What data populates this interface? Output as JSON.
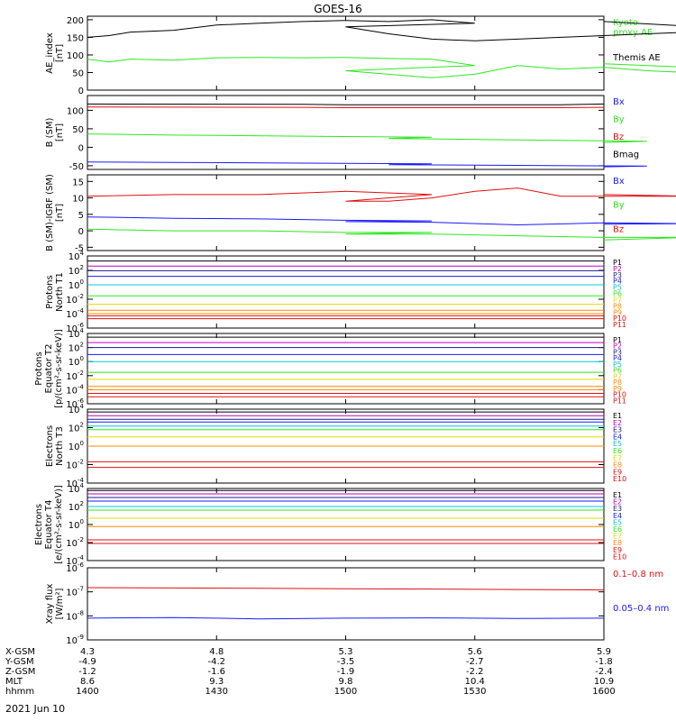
{
  "figure": {
    "title": "GOES-16",
    "date": "2021 Jun 10"
  },
  "colors": {
    "axis": "#000000",
    "black": "#000000",
    "green": "#2fe81f",
    "blue": "#1a1aff",
    "red": "#e01010",
    "orange": "#ff8c00",
    "yellow": "#e6d800",
    "cyan": "#00c8dc",
    "navy": "#1c1c8c",
    "magenta": "#c000c0"
  },
  "ephemeris": {
    "labels": [
      "X-GSM",
      "Y-GSM",
      "Z-GSM",
      "MLT",
      "hhmm"
    ],
    "columns": [
      {
        "x": "4.3",
        "y": "-4.9",
        "z": "-1.2",
        "mlt": "8.6",
        "hhmm": "1400"
      },
      {
        "x": "4.8",
        "y": "-4.2",
        "z": "-1.6",
        "mlt": "9.3",
        "hhmm": "1430"
      },
      {
        "x": "5.3",
        "y": "-3.5",
        "z": "-1.9",
        "mlt": "9.8",
        "hhmm": "1500"
      },
      {
        "x": "5.6",
        "y": "-2.7",
        "z": "-2.2",
        "mlt": "10.4",
        "hhmm": "1530"
      },
      {
        "x": "5.9",
        "y": "-1.8",
        "z": "-2.4",
        "mlt": "10.9",
        "hhmm": "1600"
      }
    ]
  },
  "chart_data": [
    {
      "type": "line",
      "ylabel": "AE_index\n[nT]",
      "xlim": [
        1400,
        1600
      ],
      "ylim": [
        0,
        210
      ],
      "yticks": [
        0,
        50,
        100,
        150,
        200
      ],
      "series": [
        {
          "name": "Kyoto\nproxy AE",
          "color": "green",
          "x": [
            1400,
            1405,
            1410,
            1420,
            1430,
            1440,
            1450,
            1460,
            1470,
            1480,
            1490,
            1500,
            1510,
            1520,
            1530,
            1540,
            1550,
            1560,
            1570,
            1580,
            1590,
            1600
          ],
          "values": [
            88,
            80,
            88,
            85,
            92,
            93,
            92,
            93,
            90,
            88,
            70,
            55,
            45,
            35,
            45,
            70,
            60,
            65,
            55,
            50,
            60,
            75
          ]
        },
        {
          "name": "Themis AE",
          "color": "black",
          "x": [
            1400,
            1405,
            1410,
            1420,
            1430,
            1440,
            1450,
            1460,
            1470,
            1480,
            1490,
            1500,
            1510,
            1520,
            1530,
            1540,
            1550,
            1560,
            1570,
            1580,
            1590,
            1600
          ],
          "values": [
            150,
            155,
            165,
            170,
            185,
            190,
            195,
            198,
            195,
            200,
            190,
            180,
            160,
            145,
            140,
            145,
            150,
            155,
            160,
            165,
            175,
            195
          ]
        }
      ]
    },
    {
      "type": "line",
      "ylabel": "B (SM)\n[nT]",
      "xlim": [
        1400,
        1600
      ],
      "ylim": [
        -60,
        140
      ],
      "yticks": [
        -50,
        0,
        50,
        100
      ],
      "series": [
        {
          "name": "Bx",
          "color": "blue",
          "x": [
            1400,
            1420,
            1450,
            1480,
            1510,
            1540,
            1570,
            1600
          ],
          "values": [
            -40,
            -41,
            -43,
            -45,
            -47,
            -49,
            -51,
            -53
          ]
        },
        {
          "name": "By",
          "color": "green",
          "x": [
            1400,
            1420,
            1450,
            1480,
            1510,
            1540,
            1570,
            1600
          ],
          "values": [
            36,
            33,
            30,
            27,
            24,
            20,
            16,
            13
          ]
        },
        {
          "name": "Bz",
          "color": "red",
          "x": [
            1400,
            1450,
            1500,
            1550,
            1600
          ],
          "values": [
            109,
            108,
            107,
            107,
            108
          ]
        },
        {
          "name": "Bmag",
          "color": "black",
          "x": [
            1400,
            1450,
            1500,
            1550,
            1600
          ],
          "values": [
            117,
            116,
            115,
            115,
            117
          ]
        }
      ]
    },
    {
      "type": "line",
      "ylabel": "B (SM)-IGRF (SM)\n[nT]",
      "xlim": [
        1400,
        1600
      ],
      "ylim": [
        -6,
        17
      ],
      "yticks": [
        -5,
        0,
        5,
        10,
        15
      ],
      "series": [
        {
          "name": "Bx",
          "color": "blue",
          "x": [
            1400,
            1420,
            1440,
            1460,
            1480,
            1500,
            1520,
            1540,
            1560,
            1580,
            1600
          ],
          "values": [
            4.2,
            3.8,
            3.6,
            3.2,
            3.0,
            2.8,
            2.6,
            1.8,
            2.4,
            2.2,
            2.0
          ]
        },
        {
          "name": "By",
          "color": "green",
          "x": [
            1400,
            1420,
            1440,
            1460,
            1480,
            1500,
            1520,
            1540,
            1560,
            1580,
            1600
          ],
          "values": [
            0.5,
            0,
            0,
            -0.5,
            -0.5,
            -1,
            -1,
            -1.5,
            -2,
            -2,
            -2.8
          ]
        },
        {
          "name": "Bz",
          "color": "red",
          "x": [
            1400,
            1420,
            1440,
            1460,
            1480,
            1500,
            1510,
            1520,
            1530,
            1540,
            1550,
            1560,
            1580,
            1600
          ],
          "values": [
            10.5,
            11,
            11,
            12,
            11,
            9,
            9,
            10,
            12,
            13,
            10.5,
            10.5,
            10.5,
            11
          ]
        }
      ]
    },
    {
      "type": "line",
      "scale": "log",
      "ylabel": "Protons\nNorth T1",
      "xlim": [
        1400,
        1600
      ],
      "ylim": [
        1e-06,
        10000.0
      ],
      "yticks": [
        1e-06,
        0.0001,
        0.01,
        1.0,
        100.0,
        10000.0
      ],
      "ytick_labels": [
        "10^-6",
        "10^-4",
        "10^-2",
        "10^0",
        "10^2",
        "10^4"
      ],
      "series": [
        {
          "name": "P1",
          "color": "black",
          "values": [
            2000,
            2000
          ]
        },
        {
          "name": "P2",
          "color": "magenta",
          "values": [
            400,
            400
          ]
        },
        {
          "name": "P3",
          "color": "navy",
          "values": [
            90,
            90
          ]
        },
        {
          "name": "P4",
          "color": "blue",
          "values": [
            15,
            15
          ]
        },
        {
          "name": "P5",
          "color": "cyan",
          "values": [
            1,
            1
          ]
        },
        {
          "name": "P6",
          "color": "green",
          "values": [
            0.03,
            0.03
          ]
        },
        {
          "name": "P7",
          "color": "yellow",
          "values": [
            0.002,
            0.002
          ]
        },
        {
          "name": "P8",
          "color": "orange",
          "values": [
            0.0003,
            0.0003
          ]
        },
        {
          "name": "P9",
          "color": "orange",
          "values": [
            0.0001,
            0.0001
          ]
        },
        {
          "name": "P10",
          "color": "red",
          "values": [
            5e-05,
            5e-05
          ]
        },
        {
          "name": "P11",
          "color": "red",
          "values": [
            2e-05,
            2e-05
          ]
        }
      ]
    },
    {
      "type": "line",
      "scale": "log",
      "ylabel": "Protons\nEquator T2\n[p/(cm²-s-sr-keV)]",
      "xlim": [
        1400,
        1600
      ],
      "ylim": [
        1e-06,
        10000.0
      ],
      "yticks": [
        1e-06,
        0.0001,
        0.01,
        1.0,
        100.0,
        10000.0
      ],
      "ytick_labels": [
        "10^-6",
        "10^-4",
        "10^-2",
        "10^0",
        "10^2",
        "10^4"
      ],
      "series": [
        {
          "name": "P1",
          "color": "black",
          "values": [
            3000,
            3000
          ]
        },
        {
          "name": "P2",
          "color": "magenta",
          "values": [
            500,
            500
          ]
        },
        {
          "name": "P3",
          "color": "navy",
          "values": [
            100,
            100
          ]
        },
        {
          "name": "P4",
          "color": "blue",
          "values": [
            10,
            10
          ]
        },
        {
          "name": "P5",
          "color": "cyan",
          "values": [
            1,
            1
          ]
        },
        {
          "name": "P6",
          "color": "green",
          "values": [
            0.03,
            0.03
          ]
        },
        {
          "name": "P7",
          "color": "yellow",
          "values": [
            0.003,
            0.003
          ]
        },
        {
          "name": "P8",
          "color": "orange",
          "values": [
            0.0003,
            0.0003
          ]
        },
        {
          "name": "P9",
          "color": "orange",
          "values": [
            0.0001,
            0.0001
          ]
        },
        {
          "name": "P10",
          "color": "red",
          "values": [
            3e-05,
            3e-05
          ]
        },
        {
          "name": "P11",
          "color": "red",
          "values": [
            1e-05,
            1e-05
          ]
        }
      ]
    },
    {
      "type": "line",
      "scale": "log",
      "ylabel": "Electrons\nNorth T3",
      "xlim": [
        1400,
        1600
      ],
      "ylim": [
        0.0001,
        10000.0
      ],
      "yticks": [
        0.0001,
        0.01,
        1.0,
        100.0,
        10000.0
      ],
      "ytick_labels": [
        "10^-4",
        "10^-2",
        "10^0",
        "10^2",
        "10^4"
      ],
      "series": [
        {
          "name": "E1",
          "color": "black",
          "values": [
            5000,
            5000
          ]
        },
        {
          "name": "E2",
          "color": "magenta",
          "values": [
            2000,
            2000
          ]
        },
        {
          "name": "E3",
          "color": "navy",
          "values": [
            800,
            800
          ]
        },
        {
          "name": "E4",
          "color": "blue",
          "values": [
            400,
            400
          ]
        },
        {
          "name": "E5",
          "color": "cyan",
          "values": [
            150,
            150
          ]
        },
        {
          "name": "E6",
          "color": "green",
          "values": [
            60,
            60
          ]
        },
        {
          "name": "E7",
          "color": "yellow",
          "values": [
            10,
            10
          ]
        },
        {
          "name": "E8",
          "color": "orange",
          "values": [
            1,
            1
          ]
        },
        {
          "name": "E9",
          "color": "red",
          "values": [
            0.02,
            0.02
          ]
        },
        {
          "name": "E10",
          "color": "red",
          "values": [
            0.005,
            0.005
          ]
        }
      ]
    },
    {
      "type": "line",
      "scale": "log",
      "ylabel": "Electrons\nEquator T4\n[e/(cm²-s-sr-keV)]",
      "xlim": [
        1400,
        1600
      ],
      "ylim": [
        0.0001,
        10000.0
      ],
      "yticks": [
        0.0001,
        0.01,
        1.0,
        100.0,
        10000.0
      ],
      "ytick_labels": [
        "10^-4",
        "10^-2",
        "10^0",
        "10^2",
        "10^4"
      ],
      "series": [
        {
          "name": "E1",
          "color": "black",
          "values": [
            6000,
            6000
          ]
        },
        {
          "name": "E2",
          "color": "magenta",
          "values": [
            2500,
            2500
          ]
        },
        {
          "name": "E3",
          "color": "navy",
          "values": [
            1000,
            1000
          ]
        },
        {
          "name": "E4",
          "color": "blue",
          "values": [
            400,
            400
          ]
        },
        {
          "name": "E5",
          "color": "cyan",
          "values": [
            100,
            100
          ]
        },
        {
          "name": "E6",
          "color": "green",
          "values": [
            40,
            40
          ]
        },
        {
          "name": "E7",
          "color": "yellow",
          "values": [
            5,
            5
          ]
        },
        {
          "name": "E8",
          "color": "orange",
          "values": [
            0.6,
            0.6
          ]
        },
        {
          "name": "E9",
          "color": "red",
          "values": [
            0.02,
            0.02
          ]
        },
        {
          "name": "E10",
          "color": "red",
          "values": [
            0.008,
            0.008
          ]
        }
      ]
    },
    {
      "type": "line",
      "scale": "log",
      "ylabel": "Xray flux\n[W/m²]",
      "xlim": [
        1400,
        1600
      ],
      "ylim": [
        1e-09,
        1e-06
      ],
      "yticks": [
        1e-09,
        1e-08,
        1e-07,
        1e-06
      ],
      "ytick_labels": [
        "10^-9",
        "10^-8",
        "10^-7",
        "10^-6"
      ],
      "series": [
        {
          "name": "0.1–0.8 nm",
          "color": "red",
          "values": [
            1.5e-07,
            1.45e-07,
            1.4e-07,
            1.35e-07,
            1.3e-07,
            1.25e-07,
            1.2e-07
          ]
        },
        {
          "name": "0.05–0.4 nm",
          "color": "blue",
          "values": [
            8e-09,
            8.5e-09,
            7.5e-09,
            8e-09,
            8.2e-09,
            7.8e-09,
            8e-09
          ]
        }
      ]
    }
  ]
}
